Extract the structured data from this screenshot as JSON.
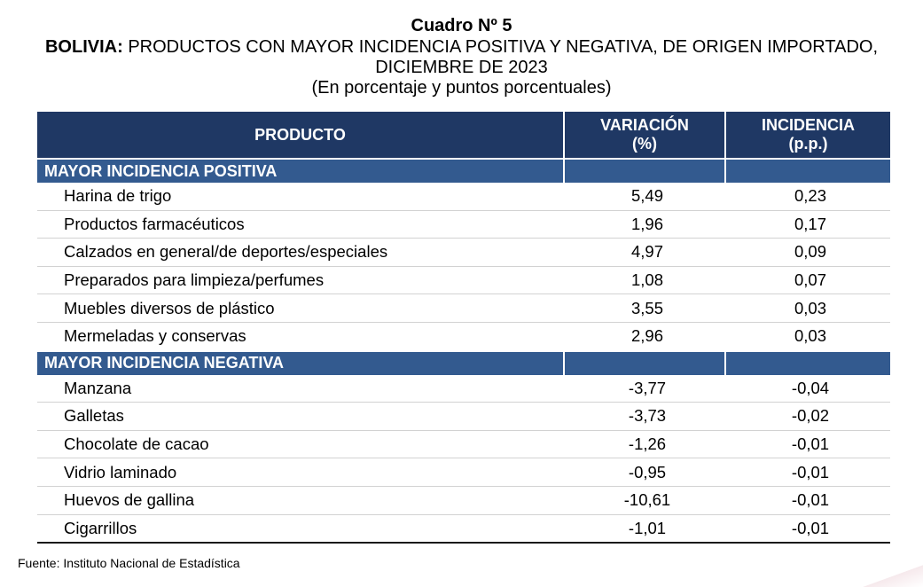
{
  "header": {
    "number": "Cuadro Nº 5",
    "title_bold": "BOLIVIA:",
    "title_rest": " PRODUCTOS CON MAYOR INCIDENCIA POSITIVA Y NEGATIVA, DE ORIGEN IMPORTADO, DICIEMBRE DE 2023",
    "subtitle": "(En porcentaje y puntos porcentuales)"
  },
  "table": {
    "columns": {
      "product": "PRODUCTO",
      "variation_line1": "VARIACIÓN",
      "variation_line2": "(%)",
      "incidence_line1": "INCIDENCIA",
      "incidence_line2": "(p.p.)"
    },
    "positive": {
      "label": "MAYOR INCIDENCIA POSITIVA",
      "rows": [
        {
          "product": "Harina de trigo",
          "variation": "5,49",
          "incidence": "0,23"
        },
        {
          "product": "Productos farmacéuticos",
          "variation": "1,96",
          "incidence": "0,17"
        },
        {
          "product": "Calzados en general/de deportes/especiales",
          "variation": "4,97",
          "incidence": "0,09"
        },
        {
          "product": "Preparados para limpieza/perfumes",
          "variation": "1,08",
          "incidence": "0,07"
        },
        {
          "product": "Muebles diversos de plástico",
          "variation": "3,55",
          "incidence": "0,03"
        },
        {
          "product": "Mermeladas y conservas",
          "variation": "2,96",
          "incidence": "0,03"
        }
      ]
    },
    "negative": {
      "label": "MAYOR INCIDENCIA NEGATIVA",
      "rows": [
        {
          "product": "Manzana",
          "variation": "-3,77",
          "incidence": "-0,04"
        },
        {
          "product": "Galletas",
          "variation": "-3,73",
          "incidence": "-0,02"
        },
        {
          "product": "Chocolate de cacao",
          "variation": "-1,26",
          "incidence": "-0,01"
        },
        {
          "product": "Vidrio laminado",
          "variation": "-0,95",
          "incidence": "-0,01"
        },
        {
          "product": "Huevos de gallina",
          "variation": "-10,61",
          "incidence": "-0,01"
        },
        {
          "product": "Cigarrillos",
          "variation": "-1,01",
          "incidence": "-0,01"
        }
      ]
    }
  },
  "source": "Fuente: Instituto Nacional de Estadística"
}
